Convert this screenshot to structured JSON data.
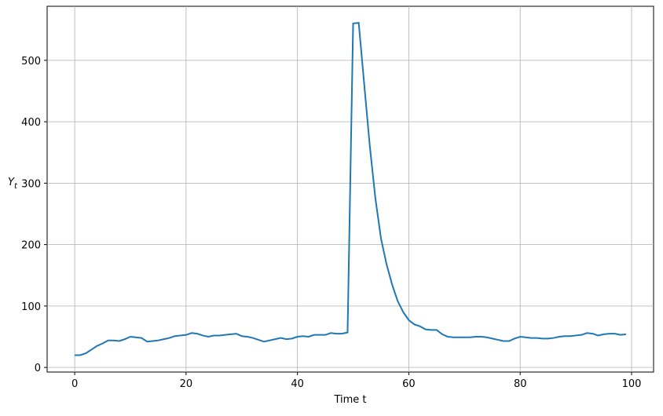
{
  "chart_data": {
    "type": "line",
    "xlabel": "Time t",
    "ylabel": {
      "text": "Y",
      "subscript": "t"
    },
    "x": [
      0,
      1,
      2,
      3,
      4,
      5,
      6,
      7,
      8,
      9,
      10,
      11,
      12,
      13,
      14,
      15,
      16,
      17,
      18,
      19,
      20,
      21,
      22,
      23,
      24,
      25,
      26,
      27,
      28,
      29,
      30,
      31,
      32,
      33,
      34,
      35,
      36,
      37,
      38,
      39,
      40,
      41,
      42,
      43,
      44,
      45,
      46,
      47,
      48,
      49,
      50,
      51,
      52,
      53,
      54,
      55,
      56,
      57,
      58,
      59,
      60,
      61,
      62,
      63,
      64,
      65,
      66,
      67,
      68,
      69,
      70,
      71,
      72,
      73,
      74,
      75,
      76,
      77,
      78,
      79,
      80,
      81,
      82,
      83,
      84,
      85,
      86,
      87,
      88,
      89,
      90,
      91,
      92,
      93,
      94,
      95,
      96,
      97,
      98,
      99
    ],
    "series": [
      {
        "name": "Y",
        "color": "#1f77b4",
        "values": [
          20,
          20,
          23,
          29,
          35,
          39,
          44,
          44,
          43,
          46,
          50,
          49,
          48,
          42,
          43,
          44,
          46,
          48,
          51,
          52,
          53,
          56,
          55,
          52,
          50,
          52,
          52,
          53,
          54,
          55,
          51,
          50,
          48,
          45,
          42,
          44,
          46,
          48,
          46,
          47,
          50,
          51,
          50,
          53,
          53,
          53,
          56,
          55,
          55,
          57,
          560,
          561,
          460,
          360,
          275,
          210,
          168,
          135,
          108,
          90,
          77,
          70,
          67,
          62,
          61,
          61,
          54,
          50,
          49,
          49,
          49,
          49,
          50,
          50,
          49,
          47,
          45,
          43,
          43,
          47,
          50,
          49,
          48,
          48,
          47,
          47,
          48,
          50,
          51,
          51,
          52,
          53,
          56,
          55,
          52,
          54,
          55,
          55,
          53,
          54
        ]
      }
    ],
    "xlim": [
      -4.95,
      103.95
    ],
    "ylim": [
      -7.5,
      588
    ],
    "xticks": [
      0,
      20,
      40,
      60,
      80,
      100
    ],
    "yticks": [
      0,
      100,
      200,
      300,
      400,
      500
    ],
    "grid": true
  }
}
